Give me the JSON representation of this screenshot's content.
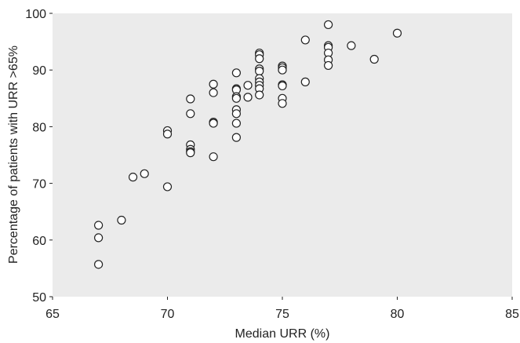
{
  "chart_data": {
    "type": "scatter",
    "title": "",
    "xlabel": "Median URR (%)",
    "ylabel": "Percentage of patients with URR >65%",
    "xlim": [
      65,
      85
    ],
    "ylim": [
      50,
      100
    ],
    "xticks": [
      65,
      70,
      75,
      80,
      85
    ],
    "yticks": [
      50,
      60,
      70,
      80,
      90,
      100
    ],
    "grid": false,
    "legend": "none",
    "colors": {
      "plot_background": "#ebebeb",
      "marker_fill": "#ffffff",
      "marker_stroke": "#222222"
    },
    "series": [
      {
        "points": [
          [
            67,
            62.6
          ],
          [
            67,
            60.4
          ],
          [
            67,
            55.7
          ],
          [
            68,
            63.5
          ],
          [
            68.5,
            71.1
          ],
          [
            69,
            71.7
          ],
          [
            70,
            79.3
          ],
          [
            70,
            78.7
          ],
          [
            70,
            69.4
          ],
          [
            71,
            84.9
          ],
          [
            71,
            82.3
          ],
          [
            71,
            76.8
          ],
          [
            71,
            76.0
          ],
          [
            71,
            75.6
          ],
          [
            71,
            75.4
          ],
          [
            72,
            87.5
          ],
          [
            72,
            86.0
          ],
          [
            72,
            80.8
          ],
          [
            72,
            80.6
          ],
          [
            72,
            74.7
          ],
          [
            73,
            89.5
          ],
          [
            73,
            86.7
          ],
          [
            73,
            86.5
          ],
          [
            73,
            85.3
          ],
          [
            73,
            85.0
          ],
          [
            73,
            83.0
          ],
          [
            73,
            82.3
          ],
          [
            73,
            80.6
          ],
          [
            73,
            78.1
          ],
          [
            73.5,
            87.3
          ],
          [
            73.5,
            85.2
          ],
          [
            74,
            93.0
          ],
          [
            74,
            92.7
          ],
          [
            74,
            92.0
          ],
          [
            74,
            90.2
          ],
          [
            74,
            89.8
          ],
          [
            74,
            88.5
          ],
          [
            74,
            87.9
          ],
          [
            74,
            87.3
          ],
          [
            74,
            86.7
          ],
          [
            74,
            85.6
          ],
          [
            75,
            90.7
          ],
          [
            75,
            90.4
          ],
          [
            75,
            90.0
          ],
          [
            75,
            87.4
          ],
          [
            75,
            87.2
          ],
          [
            75,
            85.0
          ],
          [
            75,
            84.1
          ],
          [
            76,
            95.3
          ],
          [
            76,
            87.9
          ],
          [
            77,
            98.0
          ],
          [
            77,
            94.3
          ],
          [
            77,
            94.0
          ],
          [
            77,
            93.0
          ],
          [
            77,
            91.8
          ],
          [
            77,
            90.8
          ],
          [
            78,
            94.3
          ],
          [
            79,
            91.9
          ],
          [
            80,
            96.5
          ]
        ]
      }
    ]
  }
}
